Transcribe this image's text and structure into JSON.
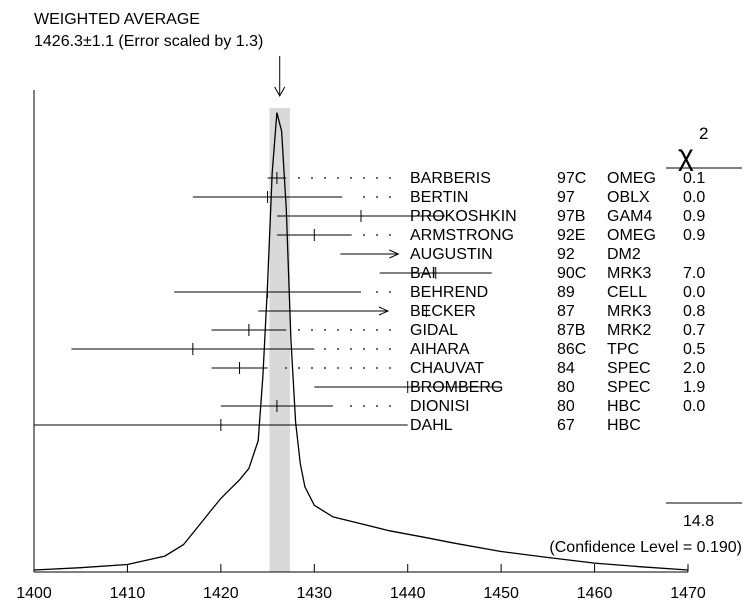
{
  "chart_data": {
    "type": "scatter",
    "title": "WEIGHTED AVERAGE",
    "subtitle": "1426.3±1.1 (Error scaled by 1.3)",
    "weighted_average": 1426.3,
    "weighted_average_error": 1.1,
    "xlim": [
      1400,
      1470
    ],
    "x_ticks": [
      1400,
      1410,
      1420,
      1430,
      1440,
      1450,
      1460,
      1470
    ],
    "x_tick_labels": [
      "1400",
      "1410",
      "1420",
      "1430",
      "1440",
      "1450",
      "1460",
      "1470"
    ],
    "chi2_header": "χ",
    "chi2_header_exp": "2",
    "chi2_total": "14.8",
    "confidence_level": "(Confidence Level = 0.190)",
    "measurements": [
      {
        "author": "BARBERIS",
        "year": "97C",
        "tech": "OMEG",
        "chi2": "0.1",
        "value": 1426,
        "err_low": 1,
        "err_high": 1,
        "in_fit": true
      },
      {
        "author": "BERTIN",
        "year": "97",
        "tech": "OBLX",
        "chi2": "0.0",
        "value": 1425,
        "err_low": 8,
        "err_high": 8,
        "in_fit": true
      },
      {
        "author": "PROKOSHKIN",
        "year": "97B",
        "tech": "GAM4",
        "chi2": "0.9",
        "value": 1435,
        "err_low": 9,
        "err_high": 9,
        "in_fit": true
      },
      {
        "author": "ARMSTRONG",
        "year": "92E",
        "tech": "OMEG",
        "chi2": "0.9",
        "value": 1430,
        "err_low": 4,
        "err_high": 4,
        "in_fit": true
      },
      {
        "author": "AUGUSTIN",
        "year": "92",
        "tech": "DM2",
        "chi2": "",
        "value": null,
        "err_low": null,
        "err_high": null,
        "in_fit": false,
        "arrow_from": 1439
      },
      {
        "author": "BAI",
        "year": "90C",
        "tech": "MRK3",
        "chi2": "7.0",
        "value": 1443,
        "err_low": 6,
        "err_high": 6,
        "in_fit": true
      },
      {
        "author": "BEHREND",
        "year": "89",
        "tech": "CELL",
        "chi2": "0.0",
        "value": 1425,
        "err_low": 10,
        "err_high": 10,
        "in_fit": true
      },
      {
        "author": "BECKER",
        "year": "87",
        "tech": "MRK3",
        "chi2": "0.8",
        "value": 1442,
        "err_low": 18,
        "err_high": null,
        "in_fit": true
      },
      {
        "author": "GIDAL",
        "year": "87B",
        "tech": "MRK2",
        "chi2": "0.7",
        "value": 1423,
        "err_low": 4,
        "err_high": 4,
        "in_fit": true
      },
      {
        "author": "AIHARA",
        "year": "86C",
        "tech": "TPC",
        "chi2": "0.5",
        "value": 1417,
        "err_low": 13,
        "err_high": 13,
        "in_fit": true
      },
      {
        "author": "CHAUVAT",
        "year": "84",
        "tech": "SPEC",
        "chi2": "2.0",
        "value": 1422,
        "err_low": 3,
        "err_high": 3,
        "in_fit": true
      },
      {
        "author": "BROMBERG",
        "year": "80",
        "tech": "SPEC",
        "chi2": "1.9",
        "value": 1440,
        "err_low": 10,
        "err_high": 10,
        "in_fit": true
      },
      {
        "author": "DIONISI",
        "year": "80",
        "tech": "HBC",
        "chi2": "0.0",
        "value": 1426,
        "err_low": 6,
        "err_high": 6,
        "in_fit": true
      },
      {
        "author": "DAHL",
        "year": "67",
        "tech": "HBC",
        "chi2": "",
        "value": 1420,
        "err_low": 20,
        "err_high": 20,
        "in_fit": false
      }
    ],
    "ideogram_curve": [
      [
        1400,
        0.0
      ],
      [
        1405,
        0.005
      ],
      [
        1410,
        0.012
      ],
      [
        1414,
        0.03
      ],
      [
        1416,
        0.055
      ],
      [
        1418,
        0.105
      ],
      [
        1419,
        0.13
      ],
      [
        1420,
        0.155
      ],
      [
        1421,
        0.175
      ],
      [
        1422,
        0.195
      ],
      [
        1423,
        0.22
      ],
      [
        1424,
        0.28
      ],
      [
        1424.5,
        0.42
      ],
      [
        1425,
        0.62
      ],
      [
        1425.5,
        0.86
      ],
      [
        1426,
        0.99
      ],
      [
        1426.5,
        0.95
      ],
      [
        1427,
        0.78
      ],
      [
        1427.5,
        0.5
      ],
      [
        1428,
        0.32
      ],
      [
        1428.5,
        0.23
      ],
      [
        1429,
        0.18
      ],
      [
        1430,
        0.14
      ],
      [
        1432,
        0.115
      ],
      [
        1435,
        0.1
      ],
      [
        1438,
        0.085
      ],
      [
        1442,
        0.07
      ],
      [
        1445,
        0.058
      ],
      [
        1450,
        0.04
      ],
      [
        1455,
        0.027
      ],
      [
        1460,
        0.015
      ],
      [
        1465,
        0.007
      ],
      [
        1470,
        0.0
      ]
    ]
  }
}
